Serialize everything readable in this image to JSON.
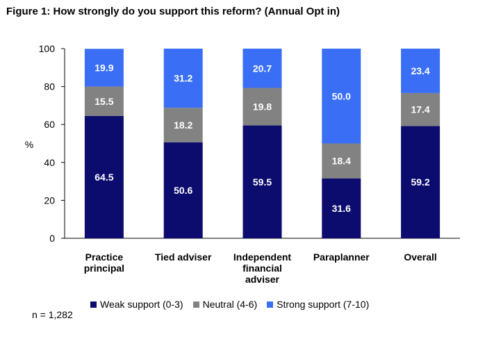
{
  "title": "Figure 1: How strongly do you support this reform? (Annual Opt in)",
  "footnote": "n = 1,282",
  "colors": {
    "weak": "#0c0c6e",
    "neutral": "#828282",
    "strong": "#3a6ef5",
    "label_light": "#ffffff"
  },
  "chart_data": {
    "type": "bar",
    "stacked": true,
    "title": "Figure 1: How strongly do you support this reform? (Annual Opt in)",
    "xlabel": "",
    "ylabel": "%",
    "ylim": [
      0,
      100
    ],
    "yticks": [
      "0",
      "20",
      "40",
      "60",
      "80",
      "100"
    ],
    "grid": false,
    "legend_position": "bottom",
    "categories": [
      [
        "Practice",
        "principal"
      ],
      [
        "Tied adviser"
      ],
      [
        "Independent",
        "financial",
        "adviser"
      ],
      [
        "Paraplanner"
      ],
      [
        "Overall"
      ]
    ],
    "series": [
      {
        "name": "Weak support (0-3)",
        "color": "#0c0c6e",
        "values": [
          64.5,
          50.6,
          59.5,
          31.6,
          59.2
        ],
        "labels": [
          "64.5",
          "50.6",
          "59.5",
          "31.6",
          "59.2"
        ]
      },
      {
        "name": "Neutral (4-6)",
        "color": "#828282",
        "values": [
          15.5,
          18.2,
          19.8,
          18.4,
          17.4
        ],
        "labels": [
          "15.5",
          "18.2",
          "19.8",
          "18.4",
          "17.4"
        ]
      },
      {
        "name": "Strong support (7-10)",
        "color": "#3a6ef5",
        "values": [
          19.9,
          31.2,
          20.7,
          50.0,
          23.4
        ],
        "labels": [
          "19.9",
          "31.2",
          "20.7",
          "50.0",
          "23.4"
        ]
      }
    ]
  }
}
